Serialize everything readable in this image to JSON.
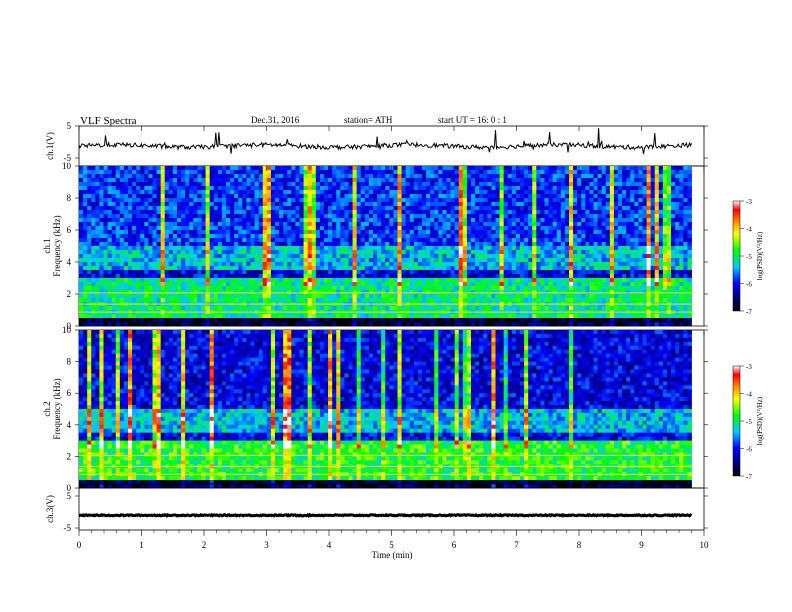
{
  "header": {
    "title": "VLF  Spectra",
    "date": "Dec.31, 2016",
    "station": "station= ATH",
    "start": "start  UT  =    16: 0   : 1"
  },
  "colors": {
    "background": "#ffffff",
    "trace": "#000000",
    "spectrogram_low": "#00008b",
    "spectrogram_mid": "#00ff00",
    "spectrogram_high": "#ff0000"
  },
  "chart_data": [
    {
      "type": "line",
      "panel": "ch1-waveform",
      "ylabel": "ch.1(V)",
      "ylim": [
        -5,
        5
      ],
      "ytick_labels": [
        "5",
        "-5"
      ],
      "trace_level": 0,
      "description_of_trace": "noisy waveform hovering near 0 V with small spikes"
    },
    {
      "type": "heatmap",
      "panel": "ch1-spectrogram",
      "ylabel_lines": [
        "ch.1",
        "Frequency  (kHz)"
      ],
      "ylim": [
        0,
        10
      ],
      "ytick_labels": [
        "10",
        "8",
        "6",
        "4",
        "2",
        "0"
      ],
      "xlim": [
        0,
        9.8
      ],
      "colorbar": {
        "label": "log(PSD)(V²/Hz)",
        "range": [
          -7,
          -3
        ],
        "tick_labels": [
          "-3",
          "-4",
          "-5",
          "-6",
          "-7"
        ]
      }
    },
    {
      "type": "heatmap",
      "panel": "ch2-spectrogram",
      "ylabel_lines": [
        "ch.2",
        "Frequency  (kHz)"
      ],
      "ylim": [
        0,
        10
      ],
      "ytick_labels": [
        "10",
        "8",
        "6",
        "4",
        "2",
        "0"
      ],
      "xlim": [
        0,
        9.8
      ],
      "colorbar": {
        "label": "log(PSD)(V²/Hz)",
        "range": [
          -7,
          -3
        ],
        "tick_labels": [
          "-3",
          "-4",
          "-5",
          "-6",
          "-7"
        ]
      }
    },
    {
      "type": "line",
      "panel": "ch3-waveform",
      "ylabel": "ch.3(V)",
      "ylim": [
        -5,
        5
      ],
      "ytick_labels": [
        "5",
        "-5"
      ],
      "trace_level": -1.5
    }
  ],
  "xaxis": {
    "label": "Time  (min)",
    "xlim": [
      0,
      10
    ],
    "tick_labels": [
      "0",
      "1",
      "2",
      "3",
      "4",
      "5",
      "6",
      "7",
      "8",
      "9",
      "10"
    ]
  }
}
